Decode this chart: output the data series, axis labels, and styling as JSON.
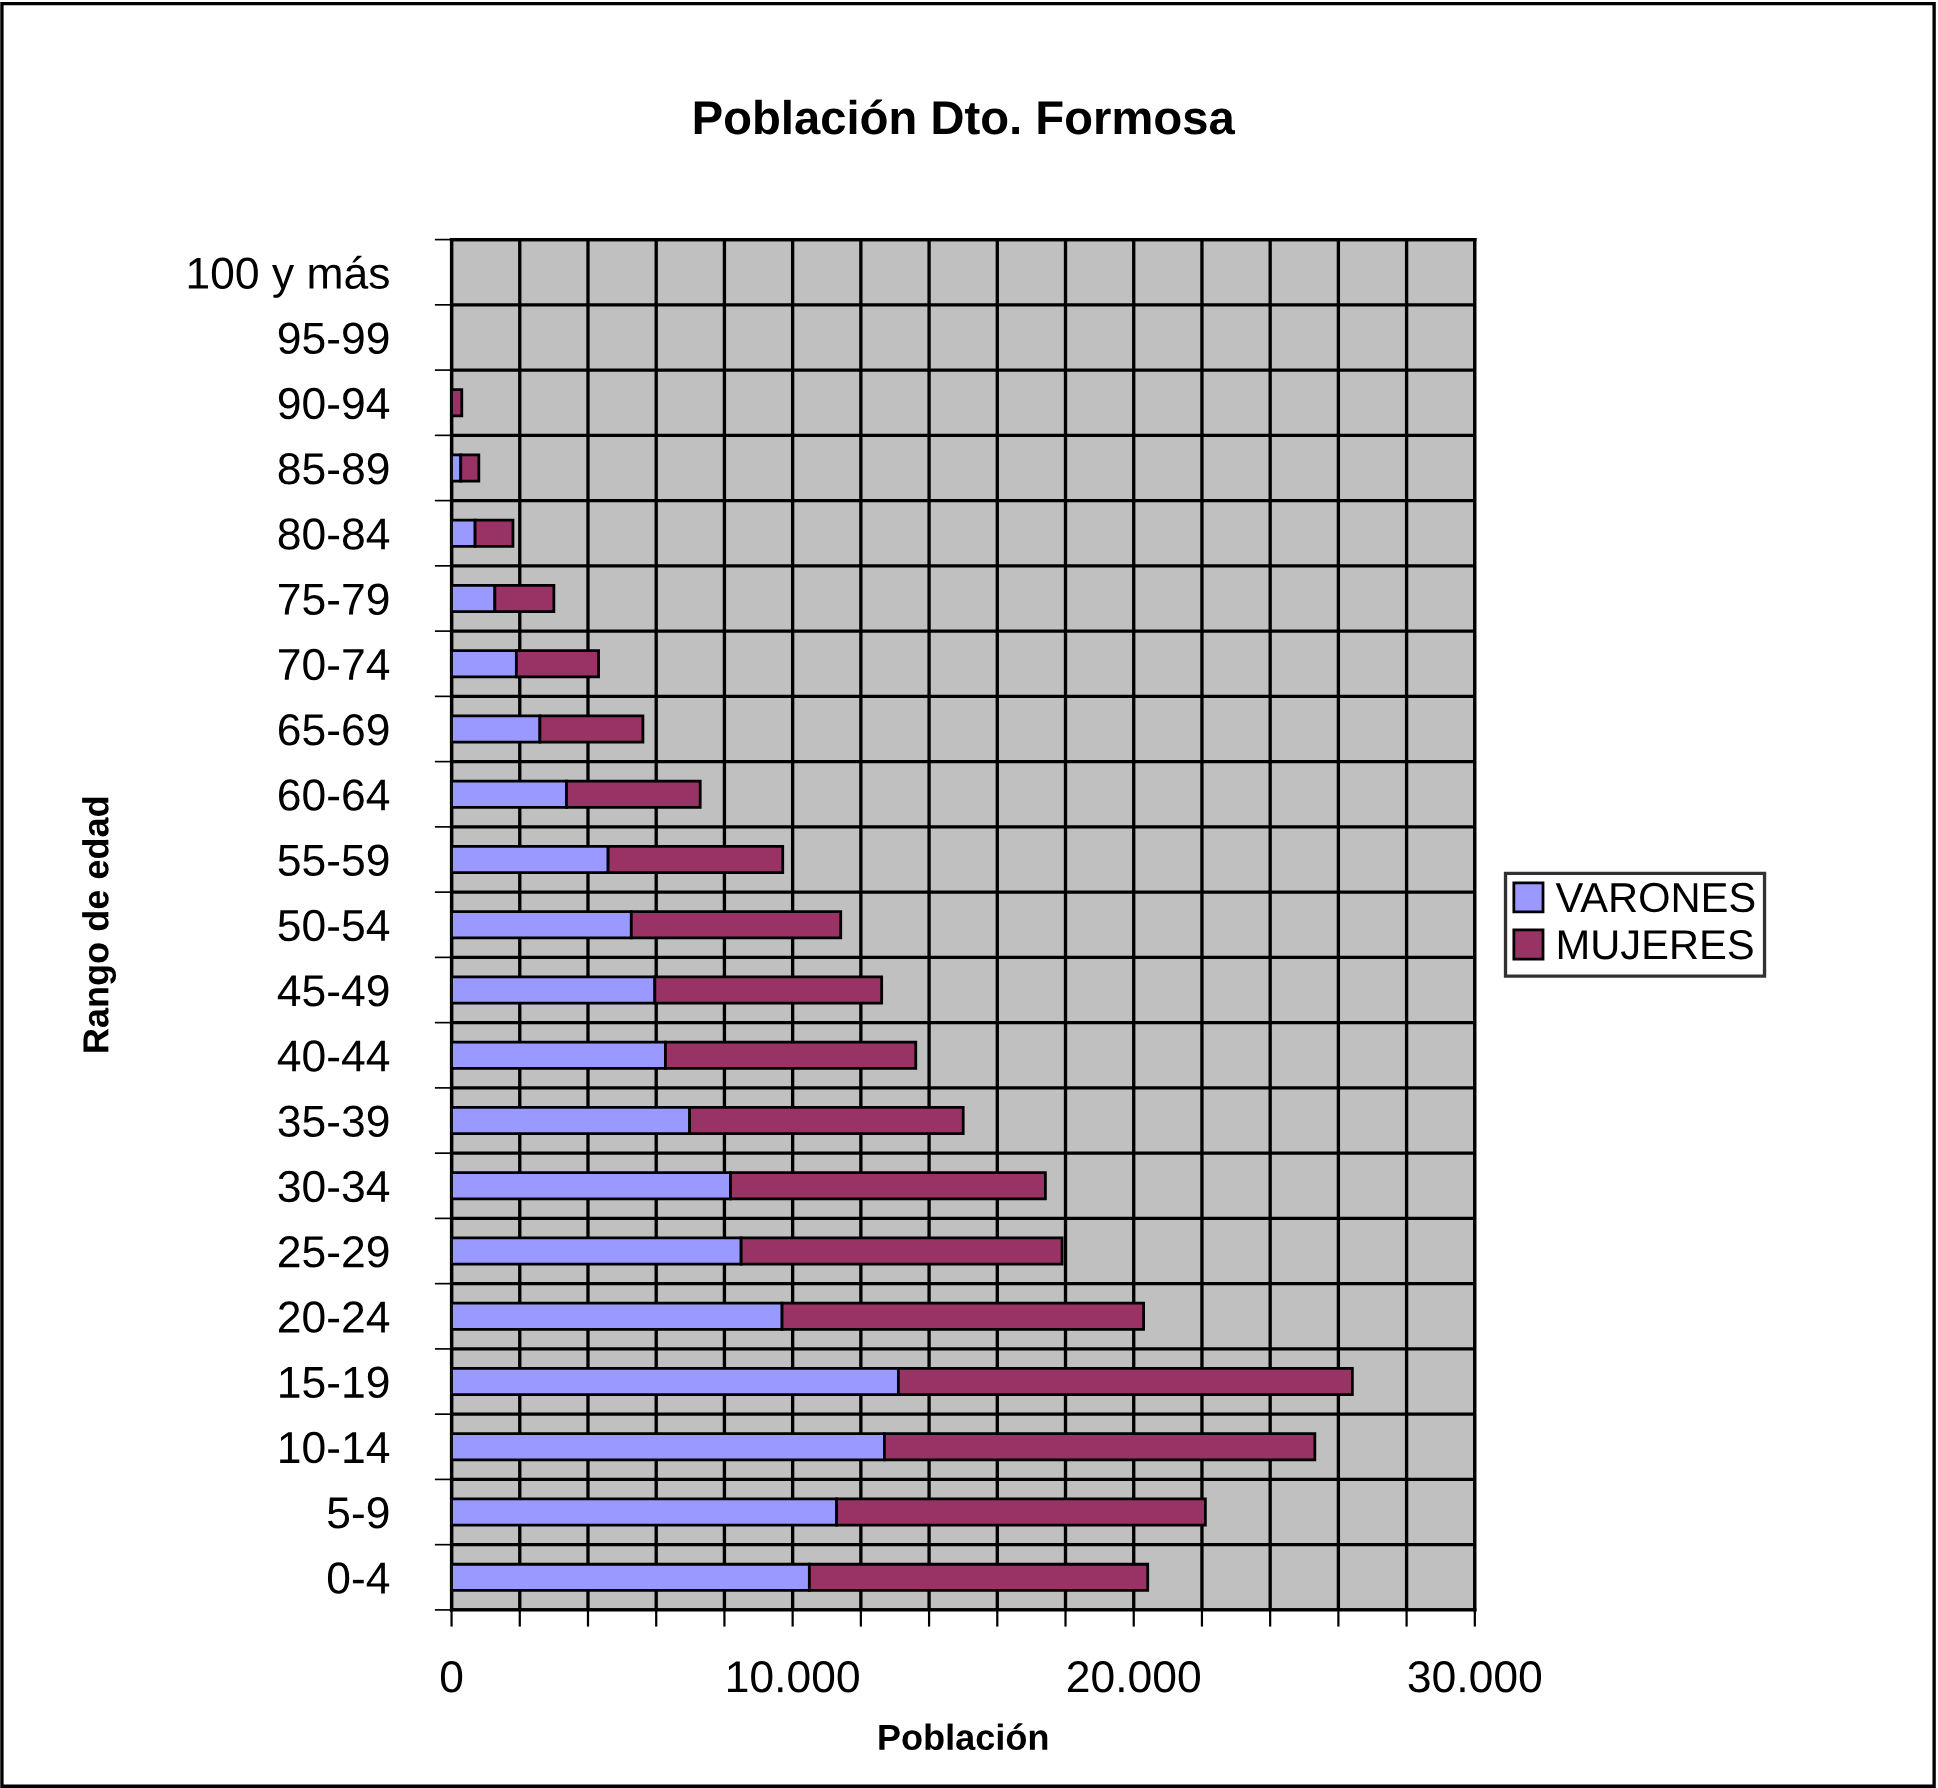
{
  "chart_data": {
    "type": "bar",
    "orientation": "horizontal",
    "stacked": true,
    "title": "Población Dto. Formosa",
    "xlabel": "Población",
    "ylabel": "Rango de edad",
    "categories": [
      "100 y más",
      "95-99",
      "90-94",
      "85-89",
      "80-84",
      "75-79",
      "70-74",
      "65-69",
      "60-64",
      "55-59",
      "50-54",
      "45-49",
      "40-44",
      "35-39",
      "30-34",
      "25-29",
      "20-24",
      "15-19",
      "10-14",
      "5-9",
      "0-4"
    ],
    "series": [
      {
        "name": "VARONES",
        "color": "#9999ff",
        "values": [
          null,
          null,
          null,
          270,
          690,
          1270,
          1900,
          2590,
          3370,
          4590,
          5270,
          5960,
          6270,
          6980,
          8180,
          8490,
          9690,
          13100,
          12690,
          11290,
          10490
        ]
      },
      {
        "name": "MUJERES",
        "color": "#993366",
        "values": [
          null,
          null,
          300,
          530,
          1110,
          1730,
          2410,
          3020,
          3920,
          5120,
          6140,
          6650,
          7340,
          8020,
          9230,
          9410,
          10600,
          13310,
          12620,
          10810,
          9920
        ]
      }
    ],
    "xlim": [
      0,
      30000
    ],
    "xticks": [
      0,
      {
        "value": 2000,
        "label": null
      },
      {
        "value": 4000,
        "label": null
      },
      {
        "value": 6000,
        "label": null
      },
      {
        "value": 8000,
        "label": null
      },
      {
        "value": 10000,
        "label": "10.000"
      },
      {
        "value": 12000,
        "label": null
      },
      {
        "value": 14000,
        "label": null
      },
      {
        "value": 16000,
        "label": null
      },
      {
        "value": 18000,
        "label": null
      },
      {
        "value": 20000,
        "label": "20.000"
      },
      {
        "value": 22000,
        "label": null
      },
      {
        "value": 24000,
        "label": null
      },
      {
        "value": 26000,
        "label": null
      },
      {
        "value": 28000,
        "label": null
      },
      {
        "value": 30000,
        "label": "30.000"
      }
    ],
    "grid": true,
    "legend": "right"
  }
}
